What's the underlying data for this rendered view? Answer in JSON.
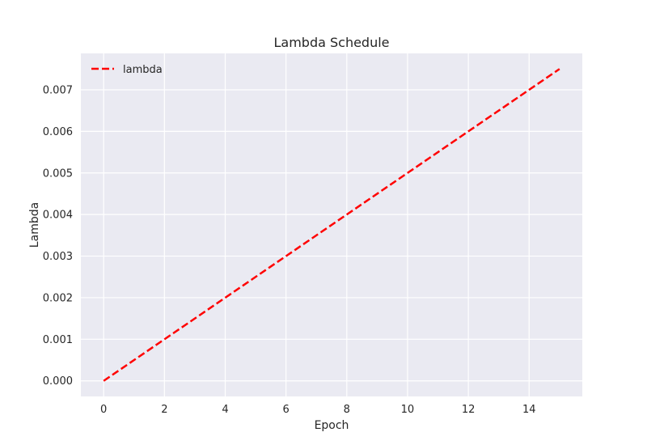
{
  "chart_data": {
    "type": "line",
    "title": "Lambda Schedule",
    "xlabel": "Epoch",
    "ylabel": "Lambda",
    "xlim": [
      -0.75,
      15.75
    ],
    "ylim": [
      -0.000375,
      0.007875
    ],
    "xticks": [
      0,
      2,
      4,
      6,
      8,
      10,
      12,
      14
    ],
    "xtick_labels": [
      "0",
      "2",
      "4",
      "6",
      "8",
      "10",
      "12",
      "14"
    ],
    "yticks": [
      0.0,
      0.001,
      0.002,
      0.003,
      0.004,
      0.005,
      0.006,
      0.007
    ],
    "ytick_labels": [
      "0.000",
      "0.001",
      "0.002",
      "0.003",
      "0.004",
      "0.005",
      "0.006",
      "0.007"
    ],
    "grid": true,
    "legend_position": "top-left",
    "series": [
      {
        "name": "lambda",
        "color": "#ff0000",
        "line_style": "dashed",
        "x": [
          0,
          15
        ],
        "y": [
          0.0,
          0.0075
        ]
      }
    ]
  },
  "colors": {
    "plot_background": "#eaeaf2",
    "grid": "#ffffff",
    "text": "#262626"
  }
}
